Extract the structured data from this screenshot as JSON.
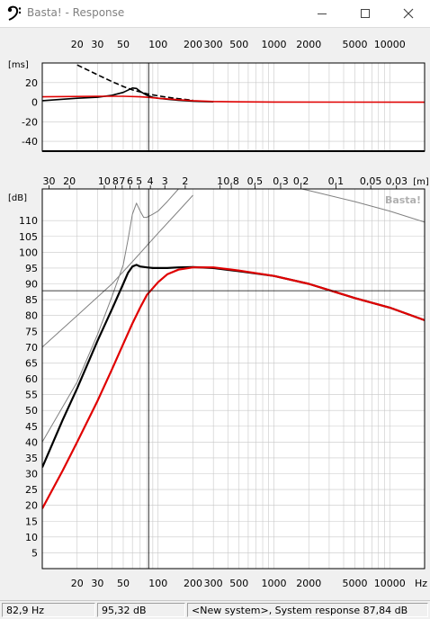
{
  "window": {
    "title": "Basta! - Response",
    "icon": "bass-clef-icon",
    "minimize_icon": "minimize-icon",
    "maximize_icon": "maximize-icon",
    "close_icon": "close-icon"
  },
  "status": {
    "frequency": "82,9 Hz",
    "level": "95,32 dB",
    "system": "<New system>, System response 87,84 dB"
  },
  "colors": {
    "accent": "#e00000",
    "curve": "#000000",
    "grid": "#c8c8c8",
    "background": "#ffffff"
  },
  "chart_data": [
    {
      "type": "line",
      "name": "group-delay",
      "xscale": "log",
      "xlim": [
        10,
        20000
      ],
      "ylim": [
        -50,
        40
      ],
      "ylabel": "[ms]",
      "x_ticks": [
        "20",
        "30",
        "50",
        "100",
        "200",
        "300",
        "500",
        "1000",
        "2000",
        "5000",
        "10000"
      ],
      "x_tick_values": [
        20,
        30,
        50,
        100,
        200,
        300,
        500,
        1000,
        2000,
        5000,
        10000
      ],
      "y_ticks": [
        20,
        0,
        -20,
        -40
      ],
      "grid": true,
      "cursor_x": 82.9,
      "series": [
        {
          "color": "#000000",
          "dash": false,
          "x": [
            10,
            15,
            20,
            30,
            40,
            50,
            60,
            65,
            70,
            80,
            90,
            100,
            120,
            150,
            200,
            300
          ],
          "y": [
            1.5,
            3,
            4,
            5,
            7,
            10,
            14.5,
            14,
            11,
            7,
            5,
            4,
            3,
            2,
            1,
            0.3
          ]
        },
        {
          "color": "#000000",
          "dash": true,
          "x": [
            20,
            30,
            40,
            50,
            60,
            70,
            80,
            100,
            120,
            150,
            200
          ],
          "y": [
            38,
            28,
            21,
            16,
            12.5,
            10.5,
            8.5,
            6.5,
            5,
            3.5,
            2
          ]
        },
        {
          "color": "#e00000",
          "dash": false,
          "x": [
            10,
            30,
            50,
            70,
            80,
            100,
            150,
            200,
            300,
            500,
            1000,
            20000
          ],
          "y": [
            5.5,
            6,
            6,
            5.5,
            5,
            4,
            2.5,
            1.5,
            0.7,
            0.3,
            0.1,
            0
          ]
        }
      ]
    },
    {
      "type": "line",
      "name": "spl-response",
      "xscale": "log",
      "xlim": [
        10,
        20000
      ],
      "ylim": [
        0,
        120
      ],
      "ylabel": "[dB]",
      "x_ticks": [
        "20",
        "30",
        "50",
        "100",
        "200",
        "300",
        "500",
        "1000",
        "2000",
        "5000",
        "10000"
      ],
      "x_tick_values": [
        20,
        30,
        50,
        100,
        200,
        300,
        500,
        1000,
        2000,
        5000,
        10000
      ],
      "x_unit": "Hz",
      "y_ticks": [
        5,
        10,
        15,
        20,
        25,
        30,
        35,
        40,
        45,
        50,
        55,
        60,
        65,
        70,
        75,
        80,
        85,
        90,
        95,
        100,
        105,
        110
      ],
      "top_axis_label": "[m]",
      "top_axis_ticks": [
        "30",
        "20",
        "10",
        "8",
        "7",
        "6",
        "5",
        "4",
        "3",
        "2",
        "1",
        "0,8",
        "0,5",
        "0,3",
        "0,2",
        "0,1",
        "0,05",
        "0,03"
      ],
      "top_axis_values": [
        30,
        20,
        10,
        8,
        7,
        6,
        5,
        4,
        3,
        2,
        1,
        0.8,
        0.5,
        0.3,
        0.2,
        0.1,
        0.05,
        0.03
      ],
      "watermark": "Basta!",
      "grid": true,
      "cursor_x": 82.9,
      "cursor_y": 87.84,
      "series": [
        {
          "color": "#000000",
          "width": 2.2,
          "x": [
            10,
            15,
            20,
            30,
            40,
            50,
            55,
            60,
            65,
            70,
            80,
            90,
            100,
            120,
            150,
            200,
            300,
            500,
            1000,
            2000,
            5000,
            10000,
            20000
          ],
          "y": [
            32,
            47,
            57,
            72,
            82,
            90,
            93.5,
            95.5,
            96,
            95.5,
            95.2,
            95,
            95,
            95,
            95.2,
            95.3,
            95,
            94,
            92.5,
            90,
            85.5,
            82.5,
            78.5
          ]
        },
        {
          "color": "#e00000",
          "width": 2.2,
          "x": [
            10,
            15,
            20,
            30,
            40,
            50,
            60,
            70,
            80,
            100,
            120,
            150,
            200,
            300,
            500,
            1000,
            2000,
            5000,
            10000,
            20000
          ],
          "y": [
            19,
            31,
            40,
            53,
            63,
            71,
            77.5,
            82.5,
            86.5,
            90.5,
            93,
            94.5,
            95.2,
            95.2,
            94.2,
            92.5,
            90,
            85.5,
            82.5,
            78.5
          ]
        },
        {
          "color": "#808080",
          "width": 1,
          "x": [
            10,
            20,
            30,
            40,
            50,
            55,
            60,
            65,
            70,
            75,
            80,
            90,
            100,
            120,
            150,
            200
          ],
          "y": [
            40,
            59,
            74,
            86,
            96,
            104,
            112,
            115.5,
            113,
            111,
            111,
            112,
            113,
            116,
            120,
            125
          ]
        },
        {
          "color": "#808080",
          "width": 1,
          "x": [
            10,
            20,
            40,
            60,
            100,
            150,
            200
          ],
          "y": [
            70,
            80,
            90,
            97,
            106,
            113,
            118
          ]
        },
        {
          "color": "#808080",
          "width": 1,
          "x": [
            1000,
            2000,
            5000,
            10000,
            20000
          ],
          "y": [
            122,
            119.5,
            116,
            113,
            109.5
          ]
        }
      ]
    }
  ]
}
